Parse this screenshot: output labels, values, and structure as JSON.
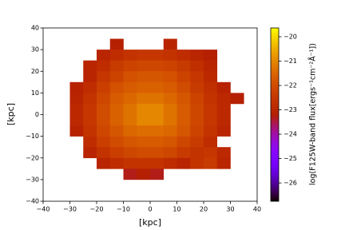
{
  "chart_data": {
    "type": "heatmap",
    "xlabel": "[kpc]",
    "ylabel": "[kpc]",
    "xlim": [
      -40,
      40
    ],
    "ylim": [
      -40,
      40
    ],
    "xticks": [
      {
        "value": -40,
        "label": "−40"
      },
      {
        "value": -30,
        "label": "−30"
      },
      {
        "value": -20,
        "label": "−20"
      },
      {
        "value": -10,
        "label": "−10"
      },
      0,
      10,
      20,
      30,
      40
    ],
    "yticks": [
      {
        "value": -40,
        "label": "−40"
      },
      {
        "value": -30,
        "label": "−30"
      },
      {
        "value": -20,
        "label": "−20"
      },
      {
        "value": -10,
        "label": "−10"
      },
      0,
      10,
      20,
      30,
      40
    ],
    "colormap": "gnuplot",
    "clim": [
      -26.75,
      -19.64
    ],
    "colorbar_label": "log(F125W-band flux[ergs⁻¹cm⁻²Å⁻¹])",
    "colorbar_ticks": [
      {
        "value": -20,
        "label": "−20"
      },
      {
        "value": -21,
        "label": "−21"
      },
      {
        "value": -22,
        "label": "−22"
      },
      {
        "value": -23,
        "label": "−23"
      },
      {
        "value": -24,
        "label": "−24"
      },
      {
        "value": -25,
        "label": "−25"
      },
      {
        "value": -26,
        "label": "−26"
      }
    ],
    "x": [
      -37.5,
      -32.5,
      -27.5,
      -22.5,
      -17.5,
      -12.5,
      -7.5,
      -2.5,
      2.5,
      7.5,
      12.5,
      17.5,
      22.5,
      27.5,
      32.5,
      37.5
    ],
    "y": [
      37.5,
      32.5,
      27.5,
      22.5,
      17.5,
      12.5,
      7.5,
      2.5,
      -2.5,
      -7.5,
      -12.5,
      -17.5,
      -22.5,
      -27.5,
      -32.5,
      -37.5
    ],
    "z": [
      [
        null,
        null,
        null,
        null,
        null,
        null,
        null,
        null,
        null,
        null,
        null,
        null,
        null,
        null,
        null,
        null
      ],
      [
        null,
        null,
        null,
        null,
        null,
        -23.2,
        null,
        null,
        null,
        -23,
        null,
        null,
        null,
        null,
        null,
        null
      ],
      [
        null,
        null,
        null,
        null,
        -23,
        -22.8,
        -22.6,
        -22.5,
        -22.5,
        -22.6,
        -22.8,
        -23,
        -23.2,
        null,
        null,
        null
      ],
      [
        null,
        null,
        null,
        -23,
        -22.8,
        -22.4,
        -22.2,
        -22.1,
        -22.1,
        -22.2,
        -22.4,
        -22.7,
        -23,
        null,
        null,
        null
      ],
      [
        null,
        null,
        null,
        -23,
        -22.5,
        -22.2,
        -21.9,
        -21.8,
        -21.8,
        -21.9,
        -22.2,
        -22.5,
        -22.9,
        null,
        null,
        null
      ],
      [
        null,
        null,
        -23.1,
        -22.8,
        -22.3,
        -21.9,
        -21.7,
        -21.6,
        -21.6,
        -21.7,
        -22,
        -22.4,
        -22.7,
        -23.1,
        null,
        null
      ],
      [
        null,
        null,
        -23,
        -22.6,
        -22.1,
        -21.7,
        -21.5,
        -21.3,
        -21.3,
        -21.5,
        -21.8,
        -22.2,
        -22.6,
        -22.9,
        -23.2,
        null
      ],
      [
        null,
        null,
        -22.9,
        -22.5,
        -22,
        -21.6,
        -21.3,
        -21,
        -21,
        -21.3,
        -21.7,
        -22.1,
        -22.5,
        -22.9,
        null,
        null
      ],
      [
        null,
        null,
        -22.9,
        -22.5,
        -22,
        -21.6,
        -21.3,
        -21,
        -21,
        -21.3,
        -21.7,
        -22.1,
        -22.5,
        -22.9,
        null,
        null
      ],
      [
        null,
        null,
        -23.1,
        -22.6,
        -22.1,
        -21.8,
        -21.5,
        -21.4,
        -21.4,
        -21.5,
        -21.8,
        -22.2,
        -22.6,
        -23,
        null,
        null
      ],
      [
        null,
        null,
        null,
        -22.8,
        -22.3,
        -22,
        -21.8,
        -21.7,
        -21.7,
        -21.8,
        -22.1,
        -22.4,
        -22.8,
        null,
        null,
        null
      ],
      [
        null,
        null,
        null,
        -23,
        -22.6,
        -22.3,
        -22.1,
        -22,
        -22,
        -22.1,
        -22.4,
        -22.6,
        -22.5,
        -22.9,
        null,
        null
      ],
      [
        null,
        null,
        null,
        null,
        -23,
        -22.8,
        -22.6,
        -22.6,
        -22.6,
        -22.8,
        -23,
        -22.6,
        -22.4,
        -23,
        null,
        null
      ],
      [
        null,
        null,
        null,
        null,
        null,
        null,
        -23.3,
        -23.2,
        -23.3,
        null,
        null,
        null,
        null,
        null,
        null,
        null
      ],
      [
        null,
        null,
        null,
        null,
        null,
        null,
        null,
        null,
        null,
        null,
        null,
        null,
        null,
        null,
        null,
        null
      ],
      [
        null,
        null,
        null,
        null,
        null,
        null,
        null,
        null,
        null,
        null,
        null,
        null,
        null,
        null,
        null,
        null
      ]
    ]
  }
}
